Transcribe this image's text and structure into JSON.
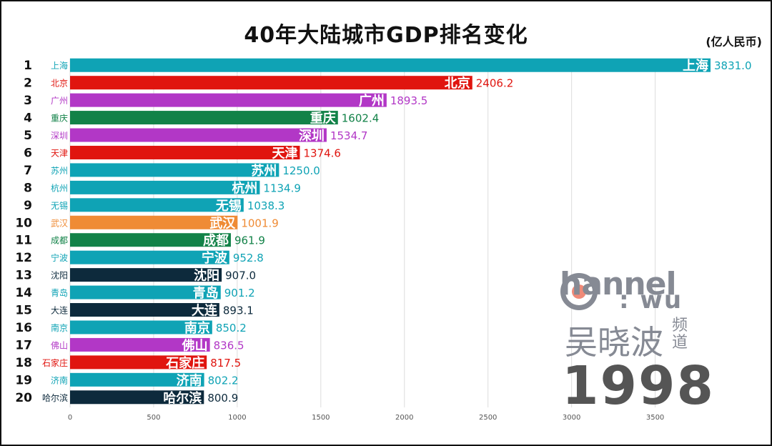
{
  "title": "40年大陆城市GDP排名变化",
  "unit": "(亿人民币)",
  "year": "1998",
  "logo": {
    "channel": "hannel",
    "wu": ": wu",
    "name": "吴晓波",
    "pindao": "频道"
  },
  "colors": {
    "teal": "#0fa3b5",
    "red": "#e0150f",
    "purple": "#b237c6",
    "green": "#128248",
    "orange": "#ef8b35",
    "navy": "#0d2a3c"
  },
  "chart_data": {
    "type": "bar",
    "orientation": "horizontal",
    "xlim": [
      0,
      3831.0
    ],
    "x_ticks": [
      0,
      500,
      1000,
      1500,
      2000,
      2500,
      3000,
      3500
    ],
    "grid": true,
    "bars": [
      {
        "rank": "1",
        "city": "上海",
        "value": 3831.0,
        "label": "3831.0",
        "color": "teal"
      },
      {
        "rank": "2",
        "city": "北京",
        "value": 2406.2,
        "label": "2406.2",
        "color": "red"
      },
      {
        "rank": "3",
        "city": "广州",
        "value": 1893.5,
        "label": "1893.5",
        "color": "purple"
      },
      {
        "rank": "4",
        "city": "重庆",
        "value": 1602.4,
        "label": "1602.4",
        "color": "green"
      },
      {
        "rank": "5",
        "city": "深圳",
        "value": 1534.7,
        "label": "1534.7",
        "color": "purple"
      },
      {
        "rank": "6",
        "city": "天津",
        "value": 1374.6,
        "label": "1374.6",
        "color": "red"
      },
      {
        "rank": "7",
        "city": "苏州",
        "value": 1250.0,
        "label": "1250.0",
        "color": "teal"
      },
      {
        "rank": "8",
        "city": "杭州",
        "value": 1134.9,
        "label": "1134.9",
        "color": "teal"
      },
      {
        "rank": "9",
        "city": "无锡",
        "value": 1038.3,
        "label": "1038.3",
        "color": "teal"
      },
      {
        "rank": "10",
        "city": "武汉",
        "value": 1001.9,
        "label": "1001.9",
        "color": "orange"
      },
      {
        "rank": "11",
        "city": "成都",
        "value": 961.9,
        "label": "961.9",
        "color": "green"
      },
      {
        "rank": "12",
        "city": "宁波",
        "value": 952.8,
        "label": "952.8",
        "color": "teal"
      },
      {
        "rank": "13",
        "city": "沈阳",
        "value": 907.0,
        "label": "907.0",
        "color": "navy"
      },
      {
        "rank": "14",
        "city": "青岛",
        "value": 901.2,
        "label": "901.2",
        "color": "teal"
      },
      {
        "rank": "15",
        "city": "大连",
        "value": 893.1,
        "label": "893.1",
        "color": "navy"
      },
      {
        "rank": "16",
        "city": "南京",
        "value": 850.2,
        "label": "850.2",
        "color": "teal"
      },
      {
        "rank": "17",
        "city": "佛山",
        "value": 836.5,
        "label": "836.5",
        "color": "purple"
      },
      {
        "rank": "18",
        "city": "石家庄",
        "value": 817.5,
        "label": "817.5",
        "color": "red"
      },
      {
        "rank": "19",
        "city": "济南",
        "value": 802.2,
        "label": "802.2",
        "color": "teal"
      },
      {
        "rank": "20",
        "city": "哈尔滨",
        "value": 800.9,
        "label": "800.9",
        "color": "navy"
      }
    ]
  }
}
